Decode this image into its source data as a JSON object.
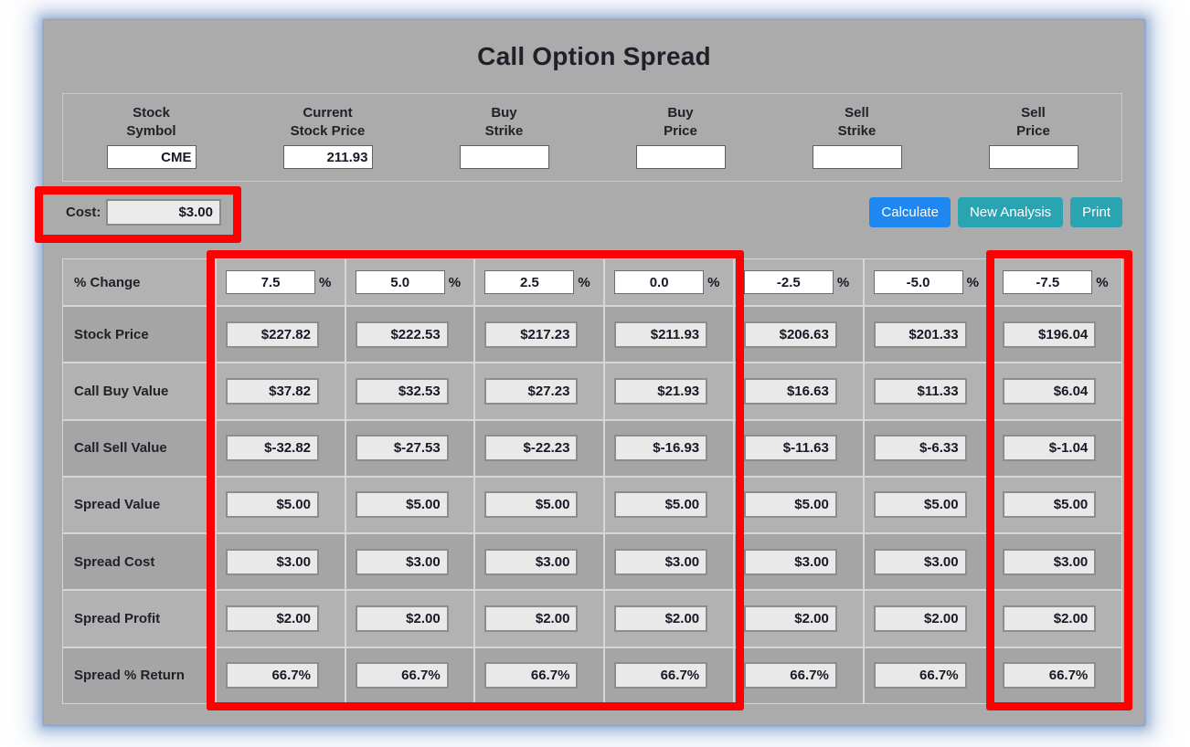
{
  "title": "Call Option Spread",
  "colors": {
    "panel_bg": "#ababab",
    "calculate_button": "#1e87f0",
    "secondary_button": "#2aa3b2",
    "highlight_rectangles": "#fe0000",
    "readonly_field_bg": "#e9e9e9"
  },
  "input_panel": {
    "fields": [
      {
        "line1": "Stock",
        "line2": "Symbol",
        "value": "CME"
      },
      {
        "line1": "Current",
        "line2": "Stock Price",
        "value": "211.93"
      },
      {
        "line1": "Buy",
        "line2": "Strike",
        "value": ""
      },
      {
        "line1": "Buy",
        "line2": "Price",
        "value": ""
      },
      {
        "line1": "Sell",
        "line2": "Strike",
        "value": ""
      },
      {
        "line1": "Sell",
        "line2": "Price",
        "value": ""
      }
    ]
  },
  "cost": {
    "label": "Cost:",
    "value": "$3.00"
  },
  "buttons": {
    "calculate": "Calculate",
    "new_analysis": "New Analysis",
    "print": "Print"
  },
  "table": {
    "pct_row": {
      "label": "% Change",
      "suffix": "%",
      "values": [
        "7.5",
        "5.0",
        "2.5",
        "0.0",
        "-2.5",
        "-5.0",
        "-7.5"
      ]
    },
    "rows": [
      {
        "label": "Stock Price",
        "values": [
          "$227.82",
          "$222.53",
          "$217.23",
          "$211.93",
          "$206.63",
          "$201.33",
          "$196.04"
        ]
      },
      {
        "label": "Call Buy Value",
        "values": [
          "$37.82",
          "$32.53",
          "$27.23",
          "$21.93",
          "$16.63",
          "$11.33",
          "$6.04"
        ]
      },
      {
        "label": "Call Sell Value",
        "values": [
          "$-32.82",
          "$-27.53",
          "$-22.23",
          "$-16.93",
          "$-11.63",
          "$-6.33",
          "$-1.04"
        ]
      },
      {
        "label": "Spread Value",
        "values": [
          "$5.00",
          "$5.00",
          "$5.00",
          "$5.00",
          "$5.00",
          "$5.00",
          "$5.00"
        ]
      },
      {
        "label": "Spread Cost",
        "values": [
          "$3.00",
          "$3.00",
          "$3.00",
          "$3.00",
          "$3.00",
          "$3.00",
          "$3.00"
        ]
      },
      {
        "label": "Spread Profit",
        "values": [
          "$2.00",
          "$2.00",
          "$2.00",
          "$2.00",
          "$2.00",
          "$2.00",
          "$2.00"
        ]
      },
      {
        "label": "Spread % Return",
        "values": [
          "66.7%",
          "66.7%",
          "66.7%",
          "66.7%",
          "66.7%",
          "66.7%",
          "66.7%"
        ]
      }
    ]
  }
}
